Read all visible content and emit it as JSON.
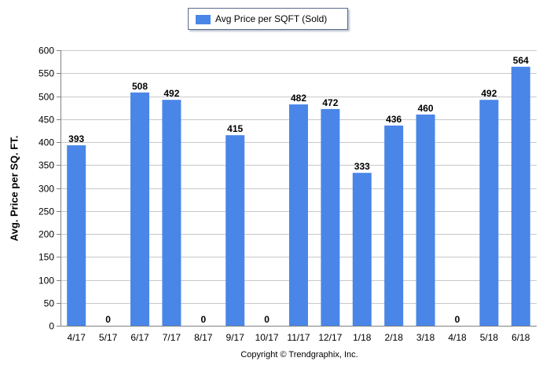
{
  "legend": {
    "label": "Avg Price per SQFT (Sold)"
  },
  "footer": {
    "copyright": "Copyright © Trendgraphix, Inc."
  },
  "colors": {
    "bar": "#4a86e8",
    "grid": "#c8c8c8",
    "axis": "#808080"
  },
  "chart_data": {
    "type": "bar",
    "categories": [
      "4/17",
      "5/17",
      "6/17",
      "7/17",
      "8/17",
      "9/17",
      "10/17",
      "11/17",
      "12/17",
      "1/18",
      "2/18",
      "3/18",
      "4/18",
      "5/18",
      "6/18"
    ],
    "series": [
      {
        "name": "Avg Price per SQFT (Sold)",
        "values": [
          393,
          0,
          508,
          492,
          0,
          415,
          0,
          482,
          472,
          333,
          436,
          460,
          0,
          492,
          564
        ]
      }
    ],
    "ylabel": "Avg. Price per SQ. FT.",
    "xlabel": "",
    "ylim": [
      0,
      600
    ],
    "yticks": [
      0,
      50,
      100,
      150,
      200,
      250,
      300,
      350,
      400,
      450,
      500,
      550,
      600
    ],
    "grid": true,
    "legend_position": "top-center",
    "data_labels": true
  }
}
